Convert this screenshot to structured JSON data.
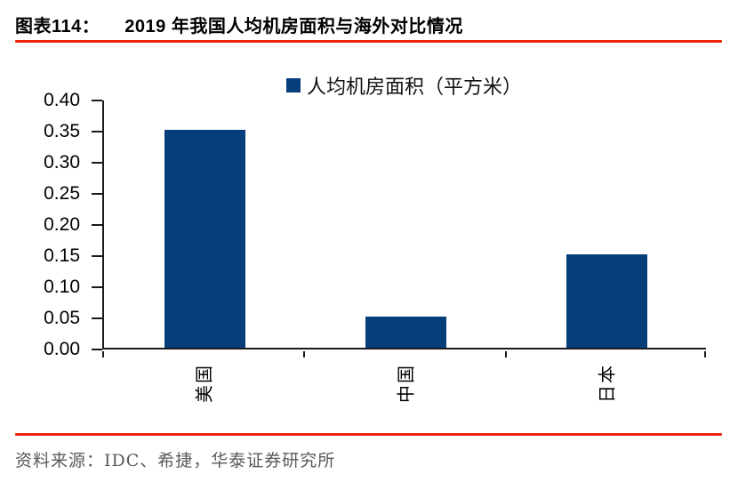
{
  "figure": {
    "label": "图表114：",
    "title": "2019 年我国人均机房面积与海外对比情况",
    "source": "资料来源：IDC、希捷，华泰证券研究所"
  },
  "colors": {
    "bar": "#063d7b",
    "accent_red": "#ed2409",
    "axis": "#1a1a1a",
    "source_text": "#595959"
  },
  "chart_data": {
    "type": "bar",
    "title": "",
    "legend": [
      "人均机房面积（平方米）"
    ],
    "legend_position": "top-center",
    "categories": [
      "美国",
      "中国",
      "日本"
    ],
    "values": [
      0.35,
      0.05,
      0.15
    ],
    "xlabel": "",
    "ylabel": "",
    "ylim": [
      0,
      0.4
    ],
    "ytick_step": 0.05,
    "yticks": [
      "0.00",
      "0.05",
      "0.10",
      "0.15",
      "0.20",
      "0.25",
      "0.30",
      "0.35",
      "0.40"
    ],
    "x_tick_labels_rotation": -90,
    "grid": false
  }
}
